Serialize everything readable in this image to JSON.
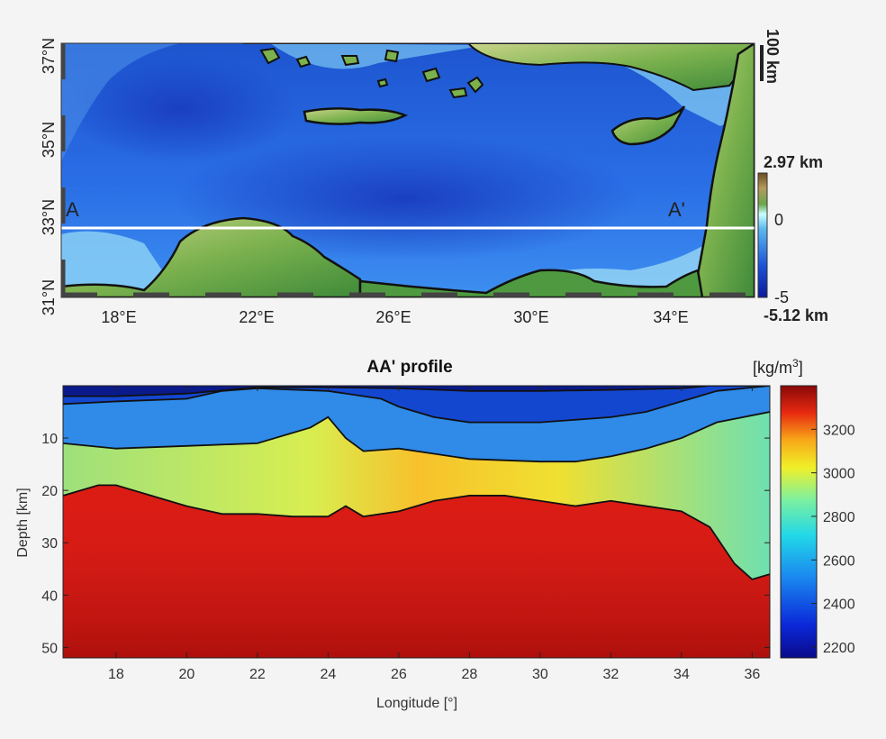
{
  "map": {
    "lat_ticks": [
      "31°N",
      "33°N",
      "35°N",
      "37°N"
    ],
    "lon_ticks": [
      "18°E",
      "22°E",
      "26°E",
      "30°E",
      "34°E"
    ],
    "lon_range": [
      16.5,
      36.5
    ],
    "lat_range": [
      31,
      37
    ],
    "scale_bar": "100 km",
    "elevation": {
      "max_label": "2.97 km",
      "min_label": "-5.12 km",
      "ticks": [
        "0",
        "-5"
      ]
    },
    "section": {
      "start_label": "A",
      "end_label": "A'",
      "lat": 32.8
    }
  },
  "chart_data": {
    "type": "heatmap",
    "title": "AA' profile",
    "xlabel": "Longitude [°]",
    "ylabel": "Depth [km]",
    "xlim": [
      16.5,
      36.5
    ],
    "ylim": [
      0,
      52
    ],
    "x_ticks": [
      18,
      20,
      22,
      24,
      26,
      28,
      30,
      32,
      34,
      36
    ],
    "y_ticks": [
      10,
      20,
      30,
      40,
      50
    ],
    "colorbar": {
      "label_main": "[kg/m",
      "label_sup": "3",
      "label_end": "]",
      "ticks": [
        2200,
        2400,
        2600,
        2800,
        3000,
        3200
      ],
      "range": [
        2150,
        3400
      ]
    },
    "layers": [
      {
        "name": "sediment_top",
        "color": "#0a2fa0",
        "boundary": [
          [
            16.5,
            2
          ],
          [
            18,
            2
          ],
          [
            20,
            1.5
          ],
          [
            22,
            0.3
          ],
          [
            24,
            0.3
          ],
          [
            26,
            0.5
          ],
          [
            28,
            1
          ],
          [
            30,
            1
          ],
          [
            32,
            0.8
          ],
          [
            34,
            0.5
          ],
          [
            34.8,
            0
          ],
          [
            36.5,
            0
          ]
        ]
      },
      {
        "name": "upper_crust",
        "color": "#2a7de0",
        "boundary": [
          [
            16.5,
            3.5
          ],
          [
            18,
            3
          ],
          [
            20,
            2.5
          ],
          [
            21,
            1
          ],
          [
            22,
            0.5
          ],
          [
            24,
            1
          ],
          [
            25.5,
            2.5
          ],
          [
            26,
            4
          ],
          [
            27,
            6
          ],
          [
            28,
            7
          ],
          [
            30,
            7
          ],
          [
            32,
            6
          ],
          [
            33,
            5
          ],
          [
            34,
            3
          ],
          [
            35,
            1
          ],
          [
            36.5,
            0
          ]
        ]
      },
      {
        "name": "middle_crust",
        "color": "#8fdc8a",
        "boundary": [
          [
            16.5,
            11
          ],
          [
            18,
            12
          ],
          [
            20,
            11.5
          ],
          [
            22,
            11
          ],
          [
            23.5,
            8
          ],
          [
            24,
            6
          ],
          [
            24.5,
            10
          ],
          [
            25,
            12.5
          ],
          [
            26,
            12
          ],
          [
            27,
            13
          ],
          [
            28,
            14
          ],
          [
            30,
            14.5
          ],
          [
            31,
            14.5
          ],
          [
            32,
            13.5
          ],
          [
            33,
            12
          ],
          [
            34,
            10
          ],
          [
            35,
            7
          ],
          [
            36.5,
            5
          ]
        ]
      },
      {
        "name": "mantle",
        "color": "#d81a1a",
        "boundary": [
          [
            16.5,
            21
          ],
          [
            17.5,
            19
          ],
          [
            18,
            19
          ],
          [
            19,
            21
          ],
          [
            20,
            23
          ],
          [
            21,
            24.5
          ],
          [
            22,
            24.5
          ],
          [
            23,
            25
          ],
          [
            24,
            25
          ],
          [
            24.5,
            23
          ],
          [
            25,
            25
          ],
          [
            26,
            24
          ],
          [
            27,
            22
          ],
          [
            28,
            21
          ],
          [
            29,
            21
          ],
          [
            30,
            22
          ],
          [
            31,
            23
          ],
          [
            32,
            22
          ],
          [
            33,
            23
          ],
          [
            34,
            24
          ],
          [
            34.8,
            27
          ],
          [
            35.5,
            34
          ],
          [
            36,
            37
          ],
          [
            36.5,
            36
          ]
        ]
      }
    ]
  }
}
